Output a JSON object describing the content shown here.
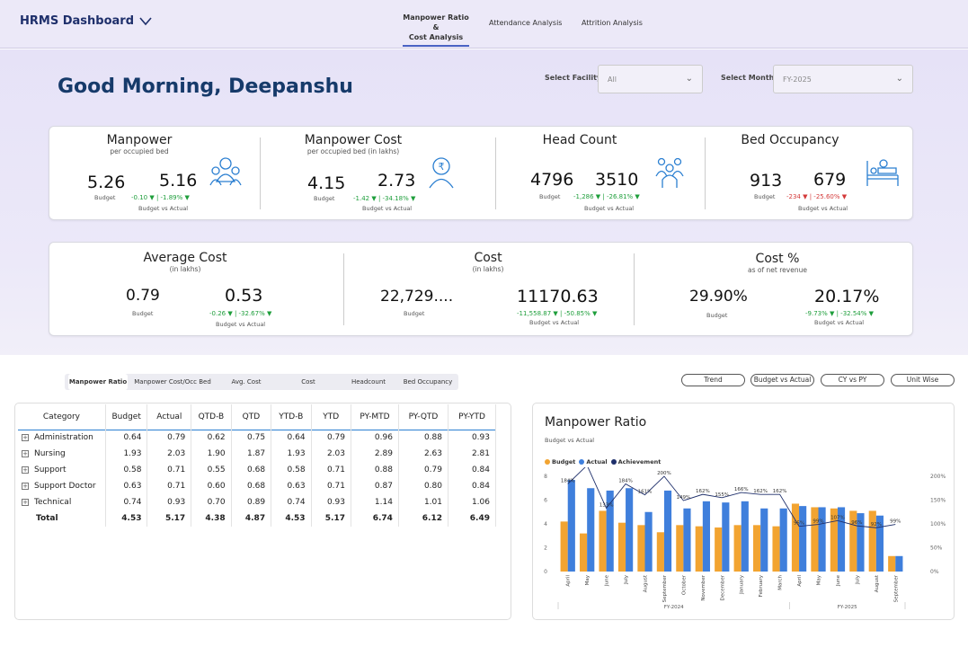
{
  "app": {
    "title": "HRMS Dashboard"
  },
  "nav": {
    "tabs": [
      {
        "label": "Manpower Ratio &",
        "label2": "Cost Analysis"
      },
      {
        "label": "Attendance Analysis"
      },
      {
        "label": "Attrition Analysis"
      }
    ]
  },
  "greeting": "Good Morning, Deepanshu",
  "filters": {
    "facility_label": "Select Facility",
    "facility_value": "All",
    "month_label": "Select Month",
    "month_value": "FY-2025"
  },
  "kpis": {
    "manpower": {
      "title": "Manpower",
      "sub": "per occupied bed",
      "budget": "5.26",
      "actual": "5.16",
      "budget_label": "Budget",
      "delta": "-0.10 ▼ | -1.89% ▼",
      "bva": "Budget vs Actual"
    },
    "manpower_cost": {
      "title": "Manpower Cost",
      "sub": "per occupied bed (in lakhs)",
      "budget": "4.15",
      "actual": "2.73",
      "budget_label": "Budget",
      "delta": "-1.42 ▼ | -34.18% ▼",
      "bva": "Budget vs Actual"
    },
    "head_count": {
      "title": "Head Count",
      "budget": "4796",
      "actual": "3510",
      "budget_label": "Budget",
      "delta": "-1,286 ▼ | -26.81% ▼",
      "bva": "Budget vs Actual"
    },
    "bed_occupancy": {
      "title": "Bed Occupancy",
      "budget": "913",
      "actual": "679",
      "budget_label": "Budget",
      "delta": "-234 ▼ | -25.60% ▼",
      "bva": "Budget vs Actual"
    },
    "average_cost": {
      "title": "Average Cost",
      "sub": "(in lakhs)",
      "budget": "0.79",
      "actual": "0.53",
      "budget_label": "Budget",
      "delta": "-0.26 ▼ | -32.67% ▼",
      "bva": "Budget vs Actual"
    },
    "cost": {
      "title": "Cost",
      "sub": "(in lakhs)",
      "budget": "22,729....",
      "actual": "11170.63",
      "budget_label": "Budget",
      "delta": "-11,558.87 ▼ | -50.85% ▼",
      "bva": "Budget vs Actual"
    },
    "cost_pct": {
      "title": "Cost %",
      "sub": "as of net revenue",
      "budget": "29.90%",
      "actual": "20.17%",
      "budget_label": "Budget",
      "delta": "-9.73% ▼ | -32.54% ▼",
      "bva": "Budget vs Actual"
    }
  },
  "tabs": [
    "Manpower Ratio",
    "Manpower Cost/Occ Bed",
    "Avg. Cost",
    "Cost",
    "Headcount",
    "Bed Occupancy"
  ],
  "pills": [
    "Trend",
    "Budget vs Actual",
    "CY vs PY",
    "Unit Wise"
  ],
  "table": {
    "headers": [
      "Category",
      "Budget",
      "Actual",
      "QTD-B",
      "QTD",
      "YTD-B",
      "YTD",
      "PY-MTD",
      "PY-QTD",
      "PY-YTD"
    ],
    "rows": [
      [
        "Administration",
        "0.64",
        "0.79",
        "0.62",
        "0.75",
        "0.64",
        "0.79",
        "0.96",
        "0.88",
        "0.93"
      ],
      [
        "Nursing",
        "1.93",
        "2.03",
        "1.90",
        "1.87",
        "1.93",
        "2.03",
        "2.89",
        "2.63",
        "2.81"
      ],
      [
        "Support",
        "0.58",
        "0.71",
        "0.55",
        "0.68",
        "0.58",
        "0.71",
        "0.88",
        "0.79",
        "0.84"
      ],
      [
        "Support Doctor",
        "0.63",
        "0.71",
        "0.60",
        "0.68",
        "0.63",
        "0.71",
        "0.87",
        "0.80",
        "0.84"
      ],
      [
        "Technical",
        "0.74",
        "0.93",
        "0.70",
        "0.89",
        "0.74",
        "0.93",
        "1.14",
        "1.01",
        "1.06"
      ]
    ],
    "total": [
      "Total",
      "4.53",
      "5.17",
      "4.38",
      "4.87",
      "4.53",
      "5.17",
      "6.74",
      "6.12",
      "6.49"
    ]
  },
  "chart": {
    "title": "Manpower Ratio",
    "subtitle": "Budget vs Actual"
  },
  "chart_data": {
    "type": "bar",
    "title": "Manpower Ratio",
    "subtitle": "Budget vs Actual",
    "categories": [
      "April",
      "May",
      "June",
      "July",
      "August",
      "September",
      "October",
      "November",
      "December",
      "January",
      "February",
      "March",
      "April",
      "May",
      "June",
      "July",
      "August",
      "September"
    ],
    "groups": [
      {
        "name": "FY-2024",
        "count": 12
      },
      {
        "name": "FY-2025",
        "count": 6
      }
    ],
    "series": [
      {
        "name": "Budget",
        "color": "#f2a431",
        "values": [
          4.2,
          3.2,
          5.1,
          4.1,
          3.9,
          3.3,
          3.9,
          3.8,
          3.7,
          3.9,
          3.9,
          3.8,
          5.7,
          5.4,
          5.3,
          5.1,
          5.1,
          1.3
        ]
      },
      {
        "name": "Actual",
        "color": "#3f7fdc",
        "values": [
          7.7,
          7.0,
          6.8,
          7.0,
          5.0,
          6.8,
          5.3,
          5.9,
          5.8,
          5.9,
          5.3,
          5.3,
          5.5,
          5.4,
          5.4,
          4.9,
          4.7,
          1.3
        ]
      },
      {
        "name": "Achievement",
        "color": "#1e2f6b",
        "values": [
          184,
          223,
          133,
          184,
          161,
          200,
          149,
          162,
          155,
          166,
          162,
          162,
          95,
          99,
          107,
          96,
          92,
          99
        ]
      }
    ],
    "yleft": {
      "range": [
        0,
        8
      ],
      "ticks": [
        "0",
        "2",
        "4",
        "6",
        "8"
      ]
    },
    "yright": {
      "range": [
        0,
        200
      ],
      "ticks": [
        "0%",
        "50%",
        "100%",
        "150%",
        "200%"
      ]
    },
    "labels": [
      "184%",
      "223%",
      "133%",
      "184%",
      "161%",
      "200%",
      "149%",
      "162%",
      "155%",
      "166%",
      "162%",
      "162%",
      "95%",
      "99%",
      "107%",
      "96%",
      "92%",
      "99%"
    ],
    "legend_position": "top-left"
  }
}
